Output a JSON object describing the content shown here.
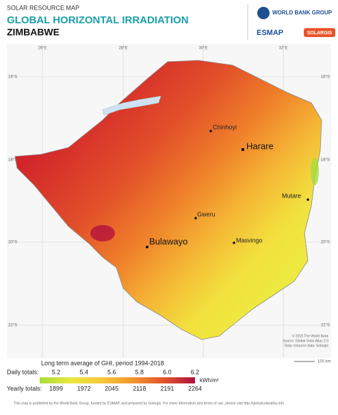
{
  "header": {
    "kicker": "SOLAR RESOURCE MAP",
    "title": "GLOBAL HORIZONTAL IRRADIATION",
    "country": "ZIMBABWE",
    "logos": [
      "WORLD BANK GROUP",
      "ESMAP",
      "SOLARGIS"
    ]
  },
  "map": {
    "longitudes": [
      "26°E",
      "28°E",
      "30°E",
      "32°E"
    ],
    "latitudes": [
      "16°S",
      "18°S",
      "20°S",
      "22°S"
    ],
    "cities": [
      "Chinhoyi",
      "Harare",
      "Mutare",
      "Gweru",
      "Bulawayo",
      "Masvingo"
    ],
    "credits": [
      "© 2019 The World Bank",
      "Source: Global Solar Atlas 2.0",
      "Solar resource data: Solargis"
    ],
    "scale": "100 km"
  },
  "legend": {
    "title": "Long term average of GHI, period 1994-2018",
    "daily_label": "Daily totals:",
    "daily": [
      "5.2",
      "5.4",
      "5.6",
      "5.8",
      "6.0",
      "6.2"
    ],
    "unit": "kWh/m²",
    "yearly_label": "Yearly totals:",
    "yearly": [
      "1899",
      "1972",
      "2045",
      "2118",
      "2191",
      "2264"
    ]
  },
  "footer": {
    "text": "This map is published by the World Bank Group, funded by ESMAP, and prepared by Solargis. For more information and terms of use, please visit http://globalsolaratlas.info"
  }
}
